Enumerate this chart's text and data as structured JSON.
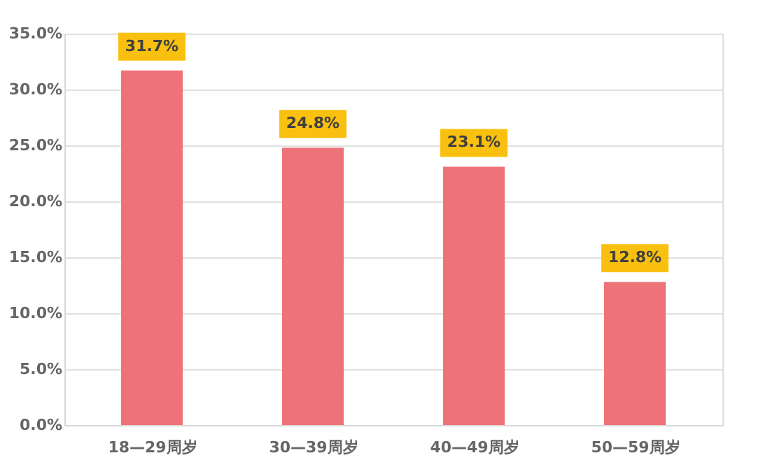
{
  "chart_data": {
    "type": "bar",
    "categories": [
      "18—29周岁",
      "30—39周岁",
      "40—49周岁",
      "50—59周岁"
    ],
    "values": [
      31.7,
      24.8,
      23.1,
      12.8
    ],
    "value_labels": [
      "31.7%",
      "24.8%",
      "23.1%",
      "12.8%"
    ],
    "color": "#ee7379",
    "ylim": [
      0,
      35
    ],
    "yticks": [
      {
        "value": 0,
        "label": "0.0%"
      },
      {
        "value": 5,
        "label": "5.0%"
      },
      {
        "value": 10,
        "label": "10.0%"
      },
      {
        "value": 15,
        "label": "15.0%"
      },
      {
        "value": 20,
        "label": "20.0%"
      },
      {
        "value": 25,
        "label": "25.0%"
      },
      {
        "value": 30,
        "label": "30.0%"
      },
      {
        "value": 35,
        "label": "35.0%"
      }
    ],
    "grid": "y"
  }
}
